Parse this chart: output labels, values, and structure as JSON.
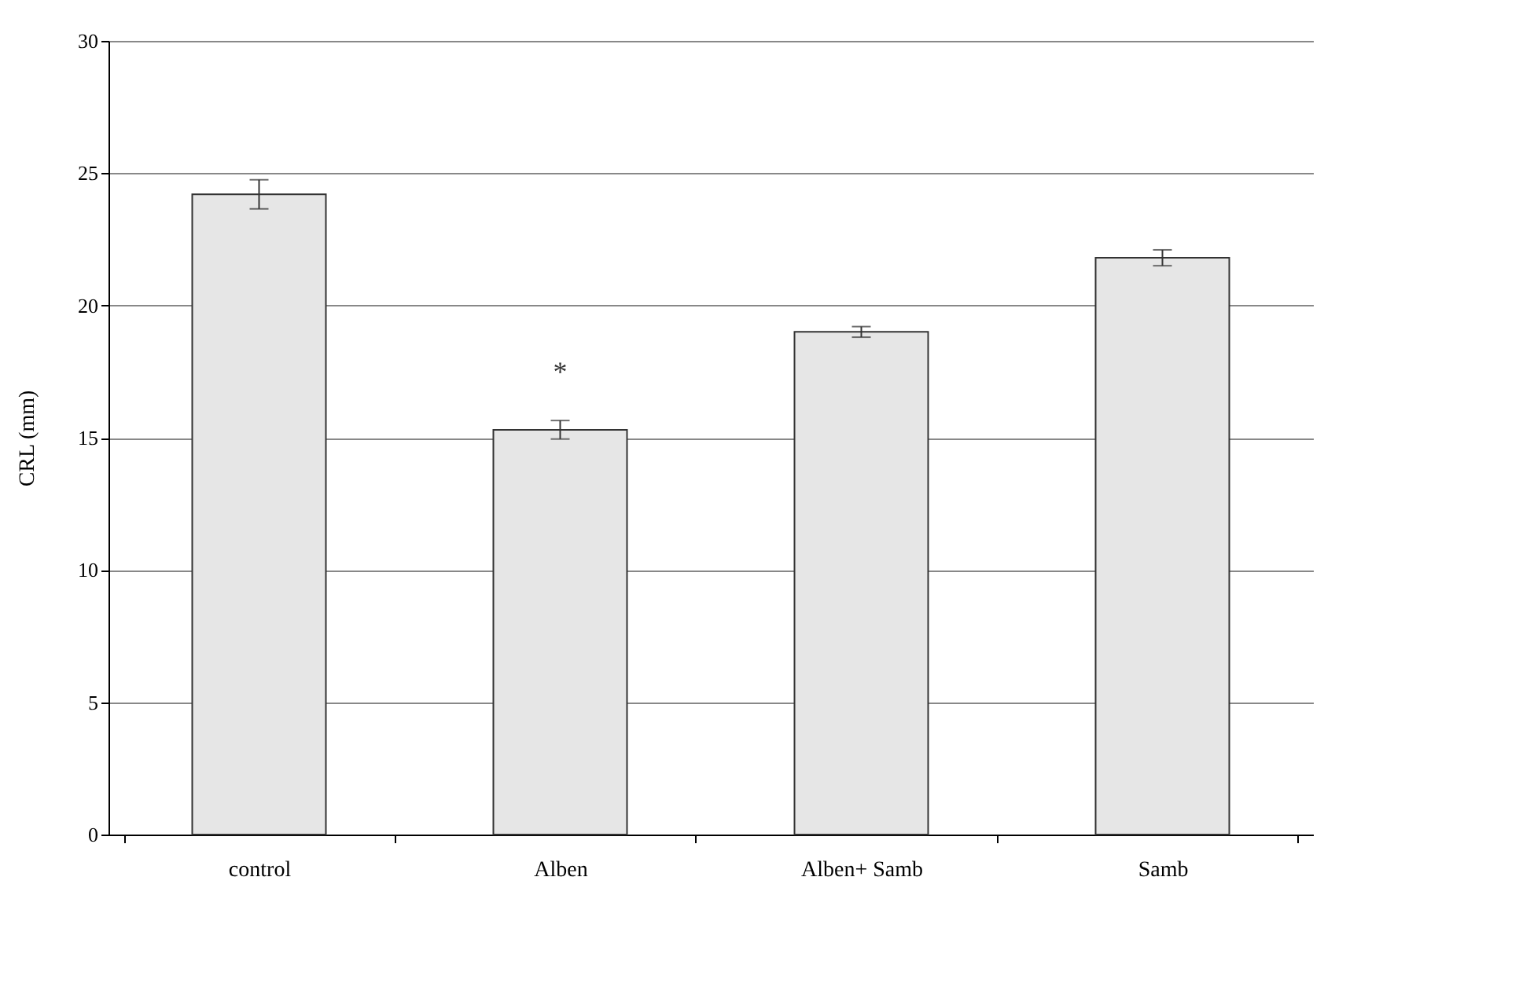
{
  "chart_data": {
    "type": "bar",
    "ylabel": "CRL (mm)",
    "categories": [
      "control",
      "Alben",
      "Alben+ Samb",
      "Samb"
    ],
    "values": [
      24.2,
      15.3,
      19.0,
      21.8
    ],
    "errors": [
      0.55,
      0.35,
      0.2,
      0.3
    ],
    "color": "#e6e6e6",
    "ylim": [
      0,
      30
    ],
    "yticks": [
      0,
      5,
      10,
      15,
      20,
      25,
      30
    ],
    "grid": "y",
    "annotations": [
      "*"
    ]
  }
}
